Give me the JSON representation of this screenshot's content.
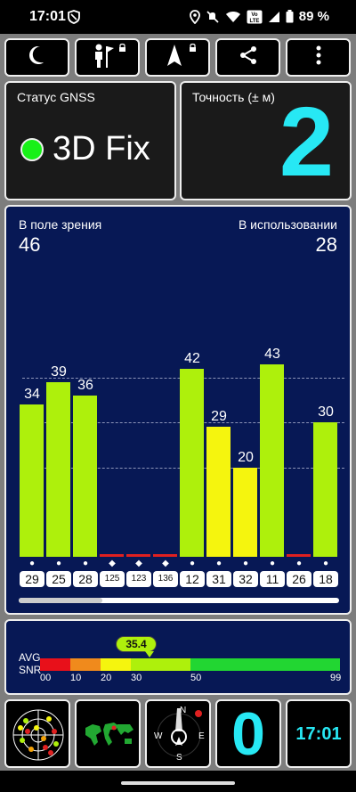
{
  "status_bar": {
    "time": "17:01",
    "icons": [
      "shield-icon",
      "location-icon",
      "mute-icon",
      "wifi-icon",
      "volte-icon",
      "signal-icon",
      "battery-icon"
    ],
    "battery": "89 %",
    "volte": "VoLTE"
  },
  "toolbar": {
    "buttons": [
      "moon-icon",
      "person-flag-icon",
      "navigation-arrow-icon",
      "share-icon",
      "more-vert-icon"
    ]
  },
  "gnss_status": {
    "label": "Статус GNSS",
    "value": "3D Fix"
  },
  "accuracy": {
    "label": "Точность (± м)",
    "value": "2"
  },
  "satellites": {
    "in_view_label": "В поле зрения",
    "in_view": "46",
    "in_use_label": "В использовании",
    "in_use": "28"
  },
  "chart_data": {
    "type": "bar",
    "categories": [
      "29",
      "25",
      "28",
      "125",
      "123",
      "136",
      "12",
      "31",
      "32",
      "11",
      "26",
      "18"
    ],
    "values": [
      34,
      39,
      36,
      0,
      0,
      0,
      42,
      29,
      20,
      43,
      0,
      30
    ],
    "value_labels": [
      "34",
      "39",
      "36",
      "",
      "",
      "",
      "42",
      "29",
      "20",
      "43",
      "",
      "30"
    ],
    "symbols": [
      "●",
      "●",
      "●",
      "◆",
      "◆",
      "◆",
      "●",
      "●",
      "●",
      "●",
      "●",
      "●"
    ],
    "xlabel": "",
    "ylabel": "",
    "ylim": [
      0,
      50
    ],
    "colors": {
      "strong": "#aef00c",
      "medium": "#f5f50e",
      "weak": "#f5a208",
      "none": "#e02020"
    }
  },
  "snr": {
    "avg_label": "AVG",
    "snr_label": "SNR",
    "avg_value": "35.4",
    "scale_labels": [
      "00",
      "10",
      "20",
      "30",
      "50",
      "99"
    ],
    "scale_colors": [
      "#e8101a",
      "#f08a1c",
      "#f5f50e",
      "#aef00c",
      "#22d632"
    ]
  },
  "bottom_bar": {
    "tiles": [
      "radar-sky-icon",
      "world-map-icon",
      "compass-icon"
    ],
    "compass_labels": [
      "N",
      "W",
      "E",
      "S"
    ],
    "count": "0",
    "clock": "17:01"
  }
}
